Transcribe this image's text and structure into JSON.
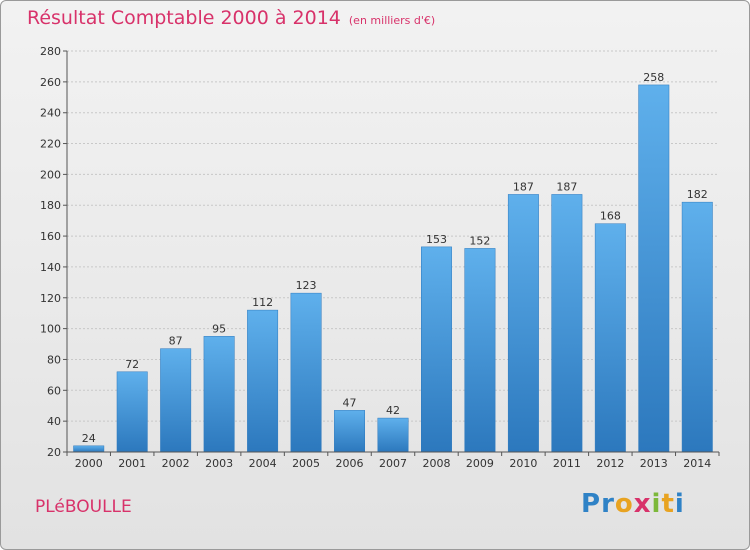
{
  "title": "Résultat Comptable 2000 à 2014",
  "unit_label": "(en milliers d'€)",
  "commune": "PLéBOULLE",
  "logo": {
    "letters": [
      "P",
      "r",
      "o",
      "x",
      "i",
      "t",
      "i"
    ],
    "colors": [
      "#2f82c6",
      "#2f82c6",
      "#e8a321",
      "#d8326a",
      "#7cb83a",
      "#e8a321",
      "#2f82c6"
    ]
  },
  "colors": {
    "bar": "#3d94dc",
    "bar_light": "#5fb0ec",
    "bar_dark": "#2c78bd",
    "accent": "#d8326a"
  },
  "chart_data": {
    "type": "bar",
    "categories": [
      "2000",
      "2001",
      "2002",
      "2003",
      "2004",
      "2005",
      "2006",
      "2007",
      "2008",
      "2009",
      "2010",
      "2011",
      "2012",
      "2013",
      "2014"
    ],
    "values": [
      24,
      72,
      87,
      95,
      112,
      123,
      47,
      42,
      153,
      152,
      187,
      187,
      168,
      258,
      182
    ],
    "ylim": [
      20,
      280
    ],
    "yticks": [
      20,
      40,
      60,
      80,
      100,
      120,
      140,
      160,
      180,
      200,
      220,
      240,
      260,
      280
    ],
    "grid": true
  }
}
